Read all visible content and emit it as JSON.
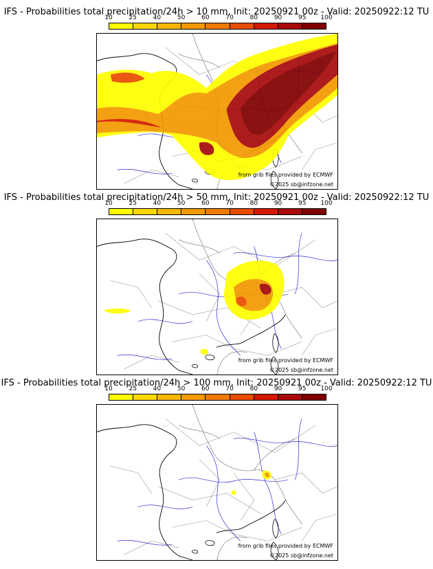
{
  "panels": [
    {
      "title": "IFS - Probabilities total precipitation/24h > 10 mm, Init: 20250921 00z - Valid: 20250922:12 TU",
      "threshold_mm": 10,
      "intensity": "high"
    },
    {
      "title": "IFS - Probabilities total precipitation/24h > 50 mm, Init: 20250921 00z - Valid: 20250922:12 TU",
      "threshold_mm": 50,
      "intensity": "medium"
    },
    {
      "title": "IFS - Probabilities total precipitation/24h > 100 mm, Init: 20250921 00z - Valid: 20250922:12 TU",
      "threshold_mm": 100,
      "intensity": "low"
    }
  ],
  "colorbar": {
    "ticks": [
      "10",
      "25",
      "40",
      "50",
      "60",
      "70",
      "80",
      "90",
      "95",
      "100"
    ],
    "colors": [
      "#ffff00",
      "#ffd700",
      "#f5b700",
      "#f29a00",
      "#ef7a00",
      "#e84c00",
      "#d21a00",
      "#a80a0a",
      "#800000"
    ]
  },
  "credits": {
    "source": "from grib files provided by ECMWF",
    "copyright": "©2025 sb@infzone.net"
  }
}
